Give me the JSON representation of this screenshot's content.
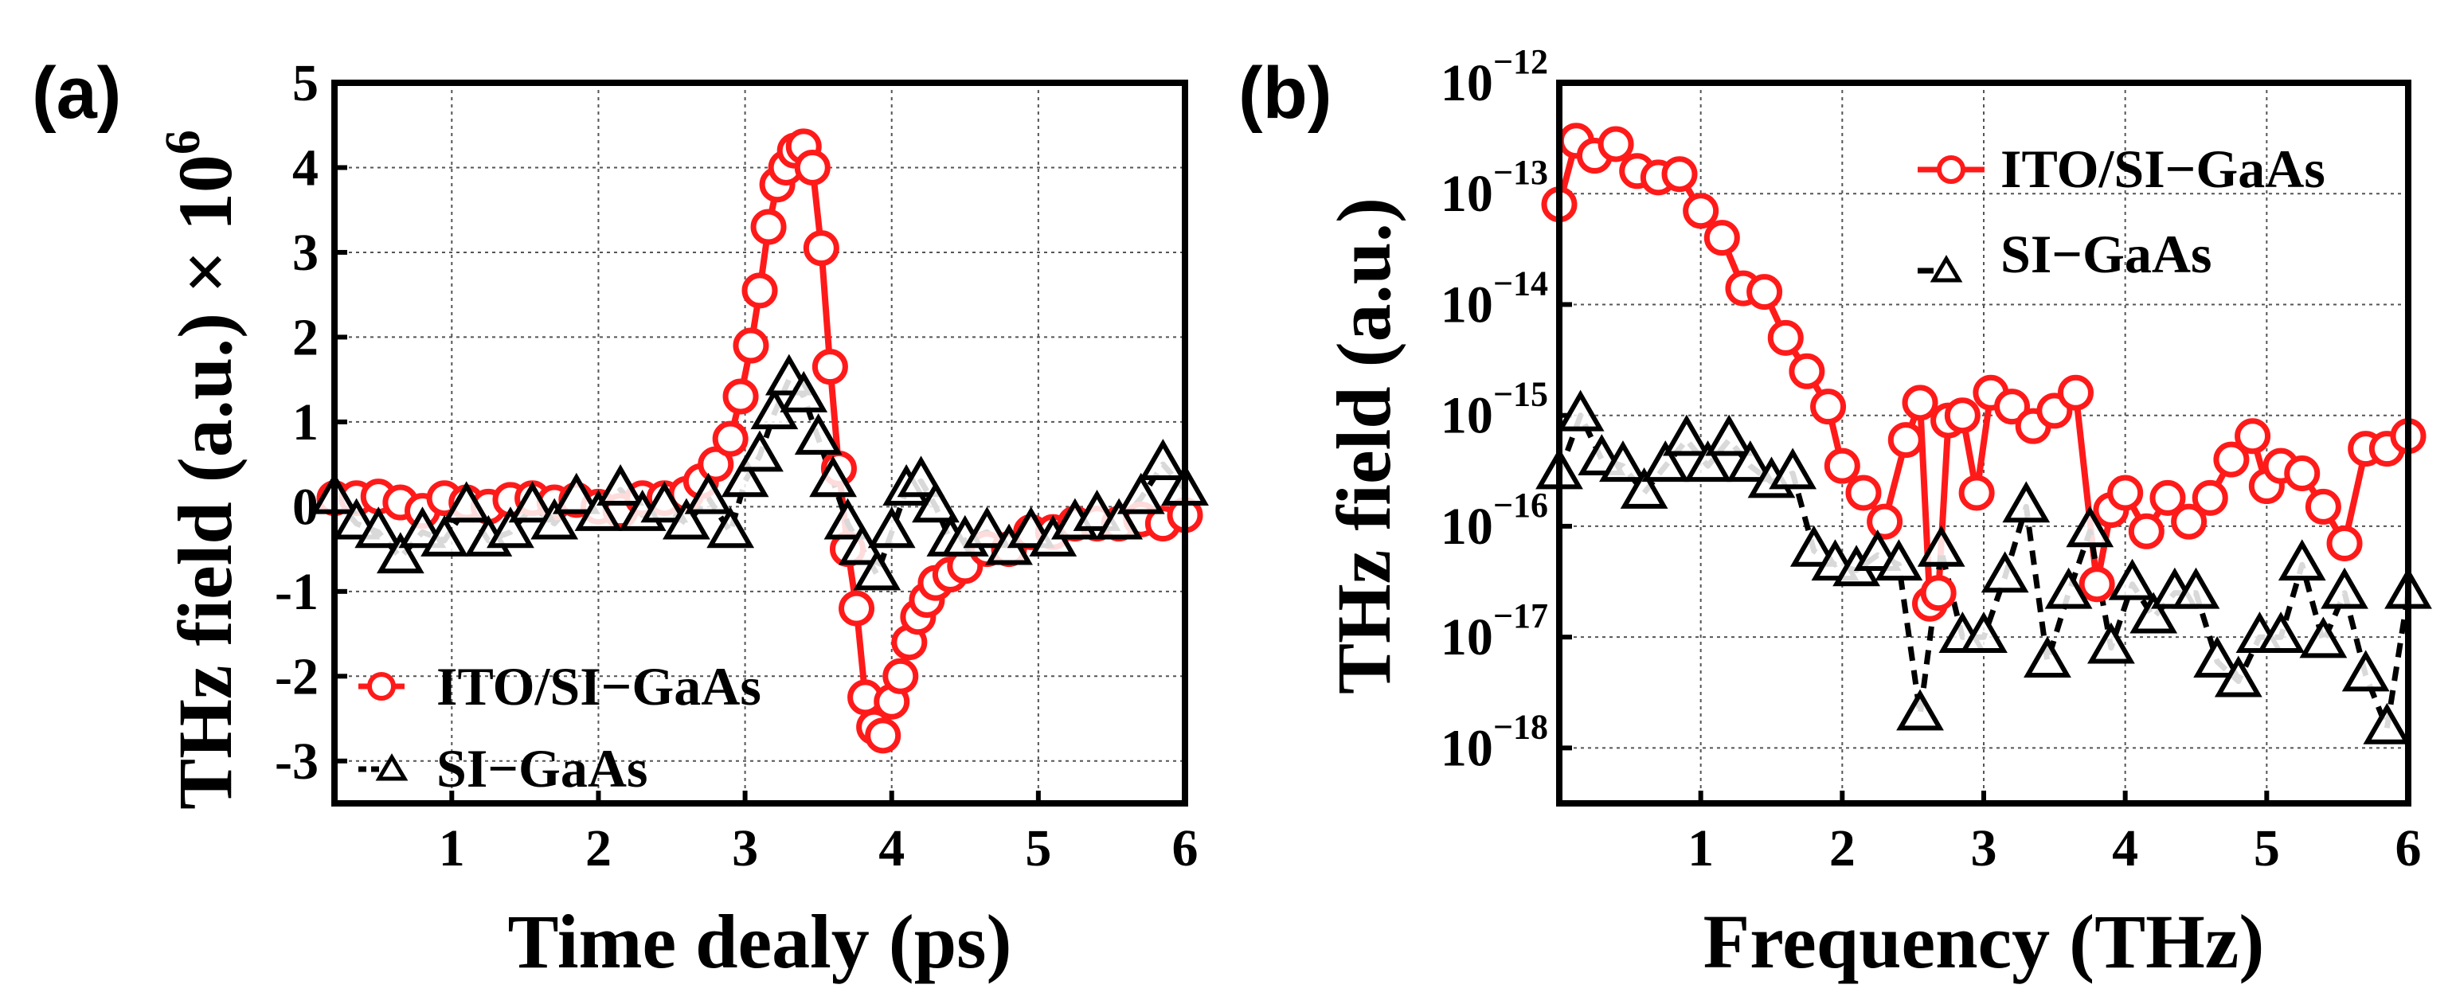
{
  "panels": {
    "a": {
      "label": "(a)"
    },
    "b": {
      "label": "(b)"
    }
  },
  "colors": {
    "ito": "#ff1a1a",
    "gaas": "#000000",
    "grid": "#555555"
  },
  "chart_data": [
    {
      "id": "a",
      "type": "line",
      "title": "",
      "xlabel": "Time dealy (ps)",
      "ylabel": "THz field (a.u.) × 10",
      "ylabel_exp": "6",
      "xlim": [
        0.2,
        6
      ],
      "ylim": [
        -3.5,
        5
      ],
      "xticks": [
        1,
        2,
        3,
        4,
        5,
        6
      ],
      "yticks": [
        -3,
        -2,
        -1,
        0,
        1,
        2,
        3,
        4,
        5
      ],
      "grid": true,
      "legend_position": "bottom-left",
      "series": [
        {
          "name": "ITO/SI−GaAs",
          "marker": "circle",
          "color": "#ff1a1a",
          "x": [
            0.2,
            0.35,
            0.5,
            0.65,
            0.8,
            0.95,
            1.1,
            1.25,
            1.4,
            1.55,
            1.7,
            1.85,
            2.0,
            2.15,
            2.3,
            2.45,
            2.6,
            2.7,
            2.8,
            2.9,
            2.97,
            3.04,
            3.1,
            3.16,
            3.22,
            3.28,
            3.34,
            3.4,
            3.46,
            3.52,
            3.58,
            3.64,
            3.7,
            3.76,
            3.82,
            3.88,
            3.94,
            4.0,
            4.06,
            4.12,
            4.18,
            4.24,
            4.3,
            4.4,
            4.5,
            4.65,
            4.8,
            4.95,
            5.1,
            5.25,
            5.4,
            5.55,
            5.7,
            5.85,
            6.0
          ],
          "y": [
            0.1,
            0.1,
            0.12,
            0.05,
            -0.05,
            0.1,
            0.05,
            0.0,
            0.08,
            0.1,
            0.05,
            0.08,
            0.0,
            -0.05,
            0.1,
            0.1,
            0.15,
            0.3,
            0.5,
            0.8,
            1.3,
            1.9,
            2.55,
            3.3,
            3.8,
            4.0,
            4.2,
            4.25,
            4.0,
            3.05,
            1.65,
            0.45,
            -0.5,
            -1.2,
            -2.25,
            -2.6,
            -2.7,
            -2.3,
            -2.0,
            -1.6,
            -1.3,
            -1.1,
            -0.9,
            -0.8,
            -0.7,
            -0.5,
            -0.5,
            -0.3,
            -0.3,
            -0.2,
            -0.2,
            -0.2,
            -0.15,
            -0.2,
            -0.1
          ]
        },
        {
          "name": "SI−GaAs",
          "marker": "triangle",
          "color": "#000000",
          "x": [
            0.2,
            0.35,
            0.5,
            0.65,
            0.8,
            0.95,
            1.1,
            1.25,
            1.4,
            1.55,
            1.7,
            1.85,
            2.0,
            2.15,
            2.3,
            2.45,
            2.6,
            2.75,
            2.9,
            3.0,
            3.1,
            3.2,
            3.3,
            3.4,
            3.5,
            3.6,
            3.7,
            3.8,
            3.9,
            4.0,
            4.1,
            4.2,
            4.3,
            4.4,
            4.5,
            4.65,
            4.8,
            4.95,
            5.1,
            5.25,
            5.4,
            5.55,
            5.7,
            5.85,
            6.0
          ],
          "y": [
            0.1,
            -0.2,
            -0.3,
            -0.6,
            -0.3,
            -0.4,
            0.0,
            -0.4,
            -0.3,
            0.0,
            -0.2,
            0.1,
            -0.1,
            0.2,
            -0.1,
            0.0,
            -0.2,
            0.1,
            -0.3,
            0.3,
            0.6,
            1.1,
            1.5,
            1.3,
            0.8,
            0.3,
            -0.2,
            -0.5,
            -0.8,
            -0.3,
            0.2,
            0.3,
            0.0,
            -0.4,
            -0.4,
            -0.3,
            -0.5,
            -0.3,
            -0.4,
            -0.2,
            -0.1,
            -0.2,
            0.1,
            0.5,
            0.2
          ]
        }
      ]
    },
    {
      "id": "b",
      "type": "line",
      "title": "",
      "xlabel": "Frequency (THz)",
      "ylabel": "THz field (a.u.)",
      "yscale": "log",
      "xlim": [
        0,
        6
      ],
      "ylim_exponent": [
        -18.5,
        -12
      ],
      "xticks": [
        1,
        2,
        3,
        4,
        5,
        6
      ],
      "yticks_exponent": [
        -12,
        -13,
        -14,
        -15,
        -16,
        -17,
        -18
      ],
      "ytick_base": "10",
      "grid": true,
      "legend_position": "top-right",
      "series": [
        {
          "name": "ITO/SI−GaAs",
          "marker": "circle",
          "color": "#ff1a1a",
          "x": [
            0.0,
            0.12,
            0.25,
            0.4,
            0.55,
            0.7,
            0.85,
            1.0,
            1.15,
            1.3,
            1.45,
            1.6,
            1.75,
            1.9,
            2.0,
            2.15,
            2.3,
            2.45,
            2.55,
            2.62,
            2.68,
            2.75,
            2.85,
            2.95,
            3.05,
            3.2,
            3.35,
            3.5,
            3.65,
            3.8,
            3.9,
            4.0,
            4.15,
            4.3,
            4.45,
            4.6,
            4.75,
            4.9,
            5.0,
            5.1,
            5.25,
            5.4,
            5.55,
            5.7,
            5.85,
            6.0
          ],
          "x_note": "",
          "y": [
            8e-14,
            3e-13,
            2.2e-13,
            2.8e-13,
            1.6e-13,
            1.4e-13,
            1.5e-13,
            7e-14,
            4e-14,
            1.4e-14,
            1.3e-14,
            5e-15,
            2.5e-15,
            1.2e-15,
            3.5e-16,
            2e-16,
            1.1e-16,
            6e-16,
            1.3e-15,
            2e-17,
            2.5e-17,
            9e-16,
            1e-15,
            2e-16,
            1.6e-15,
            1.2e-15,
            8e-16,
            1.1e-15,
            1.6e-15,
            3e-17,
            1.4e-16,
            2e-16,
            9e-17,
            1.8e-16,
            1.1e-16,
            1.8e-16,
            4e-16,
            6.5e-16,
            2.3e-16,
            3.5e-16,
            3e-16,
            1.5e-16,
            7e-17,
            5e-16,
            5e-16,
            6.5e-16
          ]
        },
        {
          "name": "SI−GaAs",
          "marker": "triangle",
          "color": "#000000",
          "x": [
            0.0,
            0.15,
            0.3,
            0.45,
            0.6,
            0.75,
            0.9,
            1.05,
            1.2,
            1.35,
            1.5,
            1.65,
            1.8,
            1.95,
            2.1,
            2.25,
            2.4,
            2.55,
            2.7,
            2.85,
            3.0,
            3.15,
            3.3,
            3.45,
            3.6,
            3.75,
            3.9,
            4.05,
            4.2,
            4.35,
            4.5,
            4.65,
            4.8,
            4.95,
            5.1,
            5.25,
            5.4,
            5.55,
            5.7,
            5.85,
            6.0
          ],
          "y": [
            3e-16,
            1e-15,
            4e-16,
            3.5e-16,
            2e-16,
            3.5e-16,
            6e-16,
            3.5e-16,
            6e-16,
            3.5e-16,
            2.5e-16,
            3e-16,
            6e-17,
            4.5e-17,
            4e-17,
            5.5e-17,
            4.5e-17,
            2e-18,
            6e-17,
            1e-17,
            1e-17,
            3.5e-17,
            1.5e-16,
            6e-18,
            2.5e-17,
            9e-17,
            8e-18,
            3e-17,
            1.5e-17,
            2.5e-17,
            2.5e-17,
            6e-18,
            4e-18,
            1e-17,
            1e-17,
            4.5e-17,
            9e-18,
            2.5e-17,
            4.5e-18,
            1.5e-18,
            2.5e-17
          ]
        }
      ]
    }
  ]
}
